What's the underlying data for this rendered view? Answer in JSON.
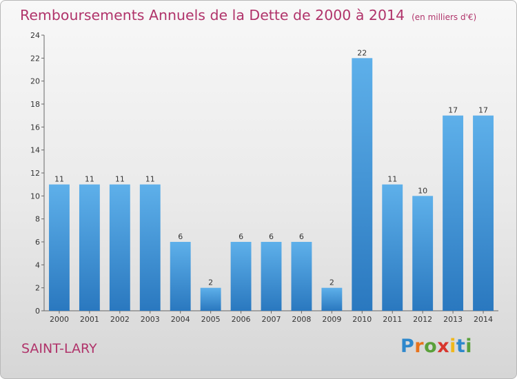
{
  "header": {
    "title": "Remboursements Annuels de la Dette de 2000 à 2014",
    "subtitle": "(en milliers d'€)"
  },
  "footer": {
    "place": "SAINT-LARY",
    "logo": [
      "P",
      "r",
      "o",
      "x",
      "i",
      "t",
      "i"
    ]
  },
  "colors": {
    "bar": "#3d8fd4",
    "title": "#b0336a"
  },
  "chart_data": {
    "type": "bar",
    "title": "Remboursements Annuels de la Dette de 2000 à 2014",
    "categories": [
      "2000",
      "2001",
      "2002",
      "2003",
      "2004",
      "2005",
      "2006",
      "2007",
      "2008",
      "2009",
      "2010",
      "2011",
      "2012",
      "2013",
      "2014"
    ],
    "values": [
      11,
      11,
      11,
      11,
      6,
      2,
      6,
      6,
      6,
      2,
      22,
      11,
      10,
      17,
      17
    ],
    "yticks": [
      0,
      2,
      4,
      6,
      8,
      10,
      12,
      14,
      16,
      18,
      20,
      22,
      24
    ],
    "ylim": [
      0,
      24
    ],
    "grid": false,
    "xlabel": "",
    "ylabel": ""
  }
}
